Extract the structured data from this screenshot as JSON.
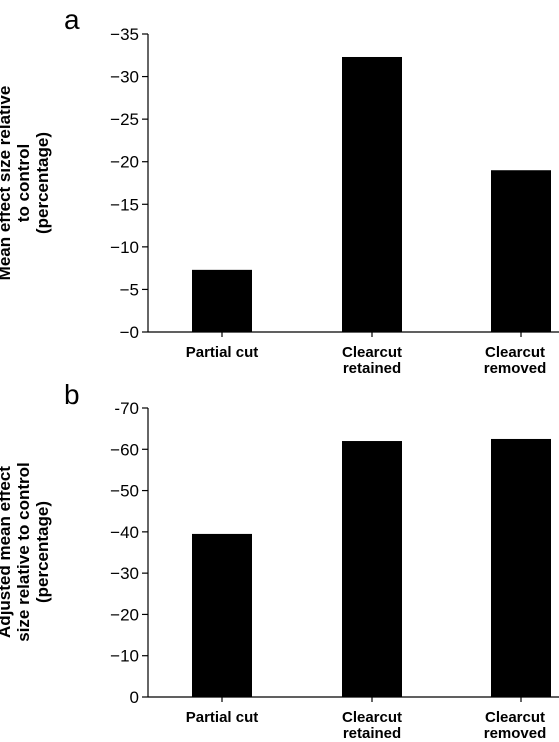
{
  "chart_data": [
    {
      "panel": "a",
      "type": "bar",
      "categories": [
        [
          "Partial cut"
        ],
        [
          "Clearcut",
          "retained"
        ],
        [
          "Clearcut",
          "removed"
        ]
      ],
      "values": [
        -7.3,
        -32.3,
        -19.0
      ],
      "ylabel": [
        "Mean effect size relative",
        "to control",
        "(percentage)"
      ],
      "ylim": [
        0,
        -35
      ],
      "yticks": [
        -35,
        -30,
        -25,
        -20,
        -15,
        -10,
        -5,
        0
      ],
      "ytick_labels": [
        "−35",
        "−30",
        "−25",
        "−20",
        "−15",
        "−10",
        "−5",
        "−0"
      ],
      "bar_color": "#000000",
      "grid": false
    },
    {
      "panel": "b",
      "type": "bar",
      "categories": [
        [
          "Partial cut"
        ],
        [
          "Clearcut",
          "retained"
        ],
        [
          "Clearcut",
          "removed"
        ]
      ],
      "values": [
        -39.5,
        -62.0,
        -62.5
      ],
      "ylabel": [
        "Adjusted mean effect",
        "size relative to control",
        "(percentage)"
      ],
      "ylim": [
        0,
        -70
      ],
      "yticks": [
        -70,
        -60,
        -50,
        -40,
        -30,
        -20,
        -10,
        0
      ],
      "ytick_labels": [
        "-70",
        "−60",
        "−50",
        "−40",
        "−30",
        "−20",
        "−10",
        "0"
      ],
      "bar_color": "#000000",
      "grid": false
    }
  ]
}
